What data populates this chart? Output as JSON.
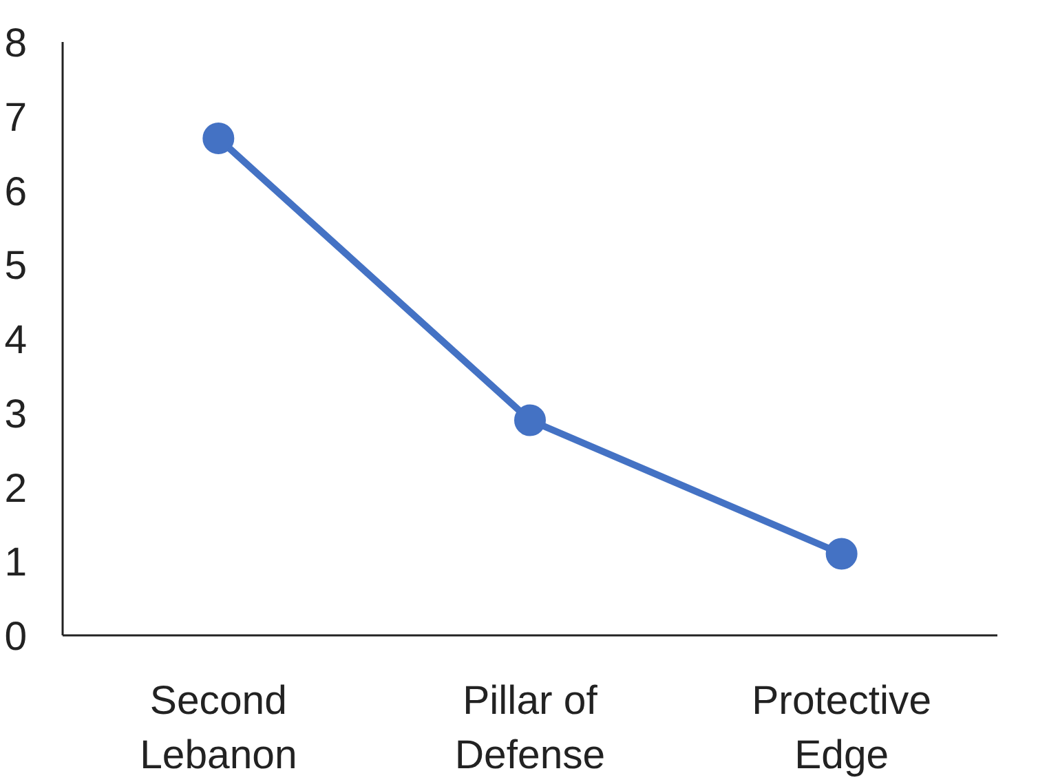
{
  "chart_data": {
    "type": "line",
    "categories": [
      "Second\nLebanon",
      "Pillar of\nDefense",
      "Protective\nEdge"
    ],
    "series": [
      {
        "color": "#4472c4",
        "values": [
          6.7,
          2.9,
          1.1
        ]
      }
    ],
    "ylim": [
      0,
      8
    ],
    "yticks": [
      0,
      1,
      2,
      3,
      4,
      5,
      6,
      7,
      8
    ],
    "grid": false,
    "marker": "circle",
    "line_style": "solid"
  }
}
